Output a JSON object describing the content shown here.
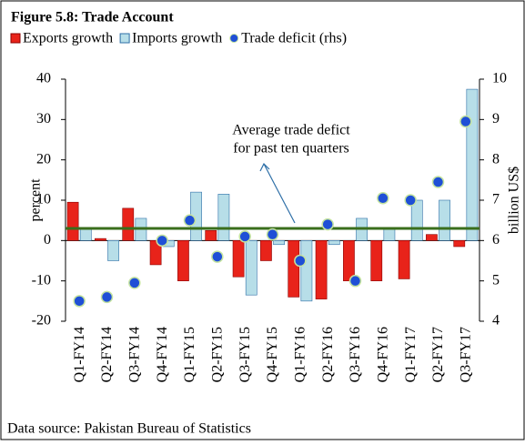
{
  "chart_data": {
    "type": "bar",
    "title": "Figure 5.8: Trade Account",
    "ylabel": "percent",
    "y2label": "billion US$",
    "source": "Data source: Pakistan Bureau of Statistics",
    "annotation": [
      "Average trade defict",
      "for past ten quarters"
    ],
    "categories": [
      "Q1-FY14",
      "Q2-FY14",
      "Q3-FY14",
      "Q4-FY14",
      "Q1-FY15",
      "Q2-FY15",
      "Q3-FY15",
      "Q4-FY15",
      "Q1-FY16",
      "Q2-FY16",
      "Q3-FY16",
      "Q4-FY16",
      "Q1-FY17",
      "Q2-FY17",
      "Q3-FY17"
    ],
    "series": [
      {
        "name": "Exports growth",
        "type": "bar",
        "color": "#e8231a",
        "values": [
          9.5,
          0.5,
          8,
          -6,
          -10,
          2.5,
          -9,
          -5,
          -14,
          -14.5,
          -10,
          -10,
          -9.5,
          1.5,
          -1.5
        ]
      },
      {
        "name": "Imports growth",
        "type": "bar",
        "color": "#b7dee8",
        "values": [
          3,
          -5,
          5.5,
          -1.5,
          12,
          11.5,
          -13.5,
          -1,
          -15,
          -1,
          5.5,
          3,
          10,
          10,
          37.5
        ]
      },
      {
        "name": "Trade deficit (rhs)",
        "type": "scatter",
        "axis": "y2",
        "color": "#1f4fd6",
        "values": [
          4.5,
          4.6,
          4.95,
          6.0,
          6.5,
          5.6,
          6.1,
          6.15,
          5.5,
          6.4,
          5.0,
          7.05,
          7.0,
          7.45,
          8.95
        ]
      }
    ],
    "average_line": {
      "value": 6.3,
      "axis": "y2",
      "color": "#3a6e1c"
    },
    "ylim": [
      -20,
      40
    ],
    "yticks": [
      -20,
      -10,
      0,
      10,
      20,
      30,
      40
    ],
    "y2lim": [
      4,
      10
    ],
    "y2ticks": [
      4,
      5,
      6,
      7,
      8,
      9,
      10
    ]
  }
}
